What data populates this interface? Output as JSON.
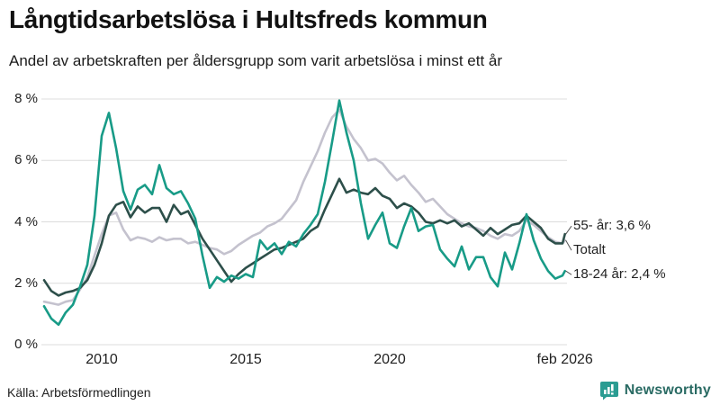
{
  "header": {
    "title": "Långtidsarbetslösa i Hultsfreds kommun",
    "subtitle": "Andel av arbetskraften per åldersgrupp som varit arbetslösa i minst ett år"
  },
  "footer": {
    "source": "Källa: Arbetsförmedlingen",
    "brand": "Newsworthy",
    "brand_icon": "bar-chart-bubble-icon",
    "brand_color": "#2a9c92"
  },
  "chart_data": {
    "type": "line",
    "title": "Långtidsarbetslösa i Hultsfreds kommun",
    "subtitle": "Andel av arbetskraften per åldersgrupp som varit arbetslösa i minst ett år",
    "unit": "%",
    "grid": "horizontal",
    "gridline_color": "#dcdcdc",
    "ylim": [
      0,
      8
    ],
    "xlim": [
      2008,
      2026.25
    ],
    "legend_position": "end-labels-right",
    "yticks": [
      {
        "label": "8 %",
        "value": 8
      },
      {
        "label": "6 %",
        "value": 6
      },
      {
        "label": "4 %",
        "value": 4
      },
      {
        "label": "2 %",
        "value": 2
      },
      {
        "label": "0 %",
        "value": 0
      }
    ],
    "xticks": [
      {
        "label": "2010",
        "year": 2010
      },
      {
        "label": "2015",
        "year": 2015
      },
      {
        "label": "2020",
        "year": 2020
      },
      {
        "label": "feb 2026",
        "year": 2026.083
      }
    ],
    "x_years": [
      2008,
      2008.25,
      2008.5,
      2008.75,
      2009,
      2009.25,
      2009.5,
      2009.75,
      2010,
      2010.25,
      2010.5,
      2010.75,
      2011,
      2011.25,
      2011.5,
      2011.75,
      2012,
      2012.25,
      2012.5,
      2012.75,
      2013,
      2013.25,
      2013.5,
      2013.75,
      2014,
      2014.25,
      2014.5,
      2014.75,
      2015,
      2015.25,
      2015.5,
      2015.75,
      2016,
      2016.25,
      2016.5,
      2016.75,
      2017,
      2017.25,
      2017.5,
      2017.75,
      2018,
      2018.25,
      2018.5,
      2018.75,
      2019,
      2019.25,
      2019.5,
      2019.75,
      2020,
      2020.25,
      2020.5,
      2020.75,
      2021,
      2021.25,
      2021.5,
      2021.75,
      2022,
      2022.25,
      2022.5,
      2022.75,
      2023,
      2023.25,
      2023.5,
      2023.75,
      2024,
      2024.25,
      2024.5,
      2024.75,
      2025,
      2025.25,
      2025.5,
      2025.75,
      2026,
      2026.083
    ],
    "series": [
      {
        "name": "Totalt",
        "end_label": "Totalt",
        "end_value_label": "",
        "color": "#c4c2ce",
        "values": [
          1.4,
          1.35,
          1.3,
          1.4,
          1.45,
          1.8,
          2.2,
          2.9,
          3.6,
          4.2,
          4.3,
          3.75,
          3.4,
          3.5,
          3.45,
          3.35,
          3.5,
          3.4,
          3.45,
          3.45,
          3.3,
          3.35,
          3.25,
          3.15,
          3.1,
          2.95,
          3.05,
          3.25,
          3.4,
          3.55,
          3.65,
          3.85,
          3.95,
          4.1,
          4.4,
          4.7,
          5.3,
          5.8,
          6.3,
          6.9,
          7.4,
          7.65,
          7.1,
          6.7,
          6.4,
          6.0,
          6.05,
          5.9,
          5.6,
          5.35,
          5.5,
          5.2,
          4.95,
          4.65,
          4.75,
          4.5,
          4.25,
          4.1,
          3.95,
          3.85,
          3.8,
          3.7,
          3.55,
          3.45,
          3.6,
          3.55,
          3.7,
          4.05,
          3.9,
          3.7,
          3.5,
          3.35,
          3.3,
          3.4
        ]
      },
      {
        "name": "55- år",
        "end_label": "55- år: 3,6 %",
        "end_value_label": "3,6 %",
        "color": "#2d4f4a",
        "values": [
          2.1,
          1.75,
          1.6,
          1.7,
          1.75,
          1.85,
          2.1,
          2.6,
          3.3,
          4.2,
          4.55,
          4.65,
          4.15,
          4.5,
          4.3,
          4.45,
          4.45,
          4.0,
          4.55,
          4.25,
          4.35,
          3.9,
          3.45,
          3.1,
          2.75,
          2.4,
          2.05,
          2.3,
          2.5,
          2.65,
          2.8,
          2.95,
          3.1,
          3.15,
          3.25,
          3.35,
          3.45,
          3.7,
          3.85,
          4.4,
          4.9,
          5.4,
          4.95,
          5.05,
          4.95,
          4.9,
          5.1,
          4.85,
          4.75,
          4.45,
          4.6,
          4.5,
          4.3,
          4.0,
          3.95,
          4.05,
          3.95,
          4.05,
          3.85,
          3.95,
          3.75,
          3.55,
          3.8,
          3.6,
          3.75,
          3.9,
          3.95,
          4.2,
          4.0,
          3.8,
          3.45,
          3.3,
          3.3,
          3.6
        ]
      },
      {
        "name": "18-24 år",
        "end_label": "18-24 år: 2,4 %",
        "end_value_label": "2,4 %",
        "color": "#189b87",
        "values": [
          1.25,
          0.85,
          0.65,
          1.05,
          1.3,
          1.9,
          2.6,
          4.2,
          6.8,
          7.55,
          6.4,
          5.0,
          4.4,
          5.05,
          5.2,
          4.9,
          5.85,
          5.1,
          4.9,
          5.0,
          4.6,
          4.1,
          2.9,
          1.85,
          2.2,
          2.05,
          2.25,
          2.15,
          2.3,
          2.2,
          3.4,
          3.1,
          3.3,
          2.95,
          3.35,
          3.2,
          3.6,
          3.9,
          4.25,
          5.3,
          6.6,
          7.95,
          6.9,
          6.0,
          4.6,
          3.45,
          3.9,
          4.3,
          3.3,
          3.15,
          3.85,
          4.45,
          3.7,
          3.85,
          3.9,
          3.1,
          2.8,
          2.55,
          3.2,
          2.45,
          2.85,
          2.85,
          2.2,
          1.9,
          3.0,
          2.45,
          3.3,
          4.25,
          3.4,
          2.8,
          2.4,
          2.15,
          2.25,
          2.4
        ]
      }
    ]
  }
}
